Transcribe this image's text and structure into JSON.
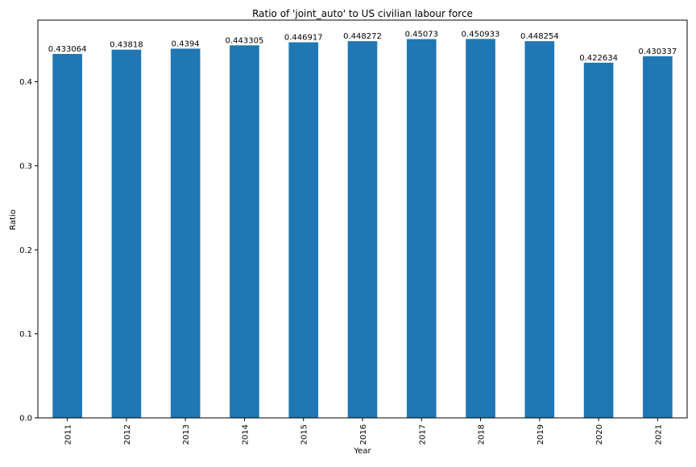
{
  "chart_data": {
    "type": "bar",
    "title": "Ratio of 'joint_auto' to US civilian labour force",
    "xlabel": "Year",
    "ylabel": "Ratio",
    "categories": [
      "2011",
      "2012",
      "2013",
      "2014",
      "2015",
      "2016",
      "2017",
      "2018",
      "2019",
      "2020",
      "2021"
    ],
    "values": [
      0.433064,
      0.43818,
      0.4394,
      0.443305,
      0.446917,
      0.448272,
      0.45073,
      0.450933,
      0.448254,
      0.422634,
      0.430337
    ],
    "value_labels": [
      "0.433064",
      "0.43818",
      "0.4394",
      "0.443305",
      "0.446917",
      "0.448272",
      "0.45073",
      "0.450933",
      "0.448254",
      "0.422634",
      "0.430337"
    ],
    "yticks": [
      "0.0",
      "0.1",
      "0.2",
      "0.3",
      "0.4"
    ],
    "ylim": [
      0,
      0.4733
    ],
    "bar_color": "#1f77b4",
    "grid": false,
    "legend": "none"
  }
}
